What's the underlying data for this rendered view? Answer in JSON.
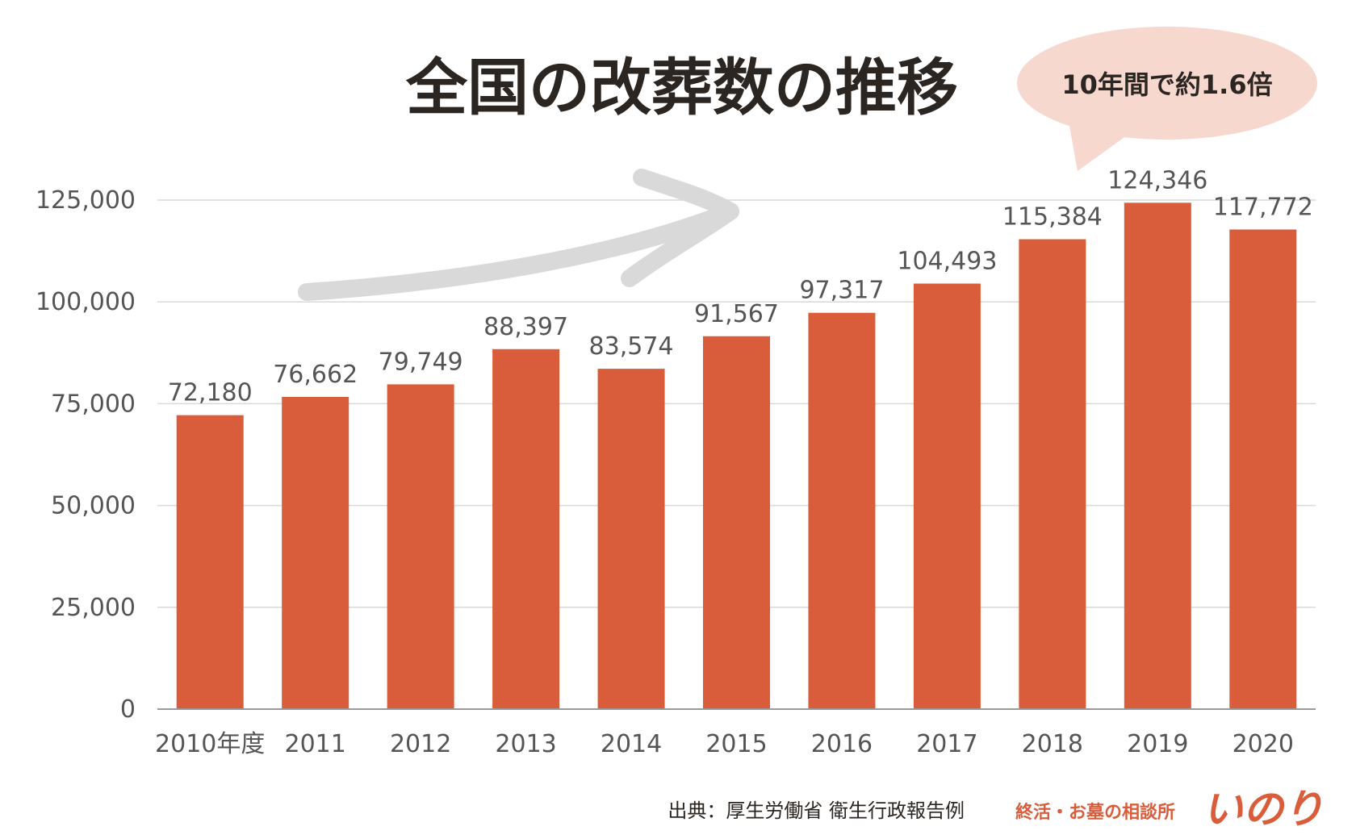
{
  "chart_data": {
    "type": "bar",
    "title": "全国の改葬数の推移",
    "categories": [
      "2010年度",
      "2011",
      "2012",
      "2013",
      "2014",
      "2015",
      "2016",
      "2017",
      "2018",
      "2019",
      "2020"
    ],
    "values": [
      72180,
      76662,
      79749,
      88397,
      83574,
      91567,
      97317,
      104493,
      115384,
      124346,
      117772
    ],
    "value_labels": [
      "72,180",
      "76,662",
      "79,749",
      "88,397",
      "83,574",
      "91,567",
      "97,317",
      "104,493",
      "115,384",
      "124,346",
      "117,772"
    ],
    "yticks": [
      0,
      25000,
      50000,
      75000,
      100000,
      125000
    ],
    "ytick_labels": [
      "0",
      "25,000",
      "50,000",
      "75,000",
      "100,000",
      "125,000"
    ],
    "ylim": [
      0,
      125000
    ],
    "xlabel": "",
    "ylabel": "",
    "grid": true,
    "annotation": "10年間で約1.6倍",
    "source": "出典：厚生労働省 衛生行政報告例"
  },
  "brand": {
    "tagline": "終活・お墓の相談所",
    "name": "いのり"
  },
  "colors": {
    "bar": "#d95d3b",
    "callout": "#f6d8cf",
    "arrow": "#d9d9d9",
    "grid": "#d9d9d9",
    "brand": "#d95d3b"
  }
}
